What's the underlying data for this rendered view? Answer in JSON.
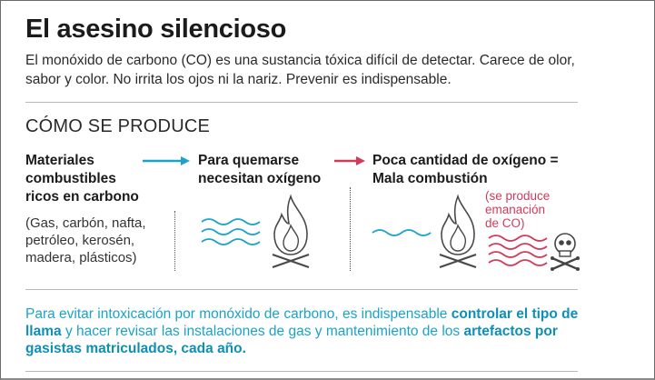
{
  "title": "El asesino silencioso",
  "lead": "El monóxido de carbono (CO) es una sustancia tóxica difícil de detectar. Carece de olor, sabor y color. No irrita los ojos ni la nariz. Prevenir es indispensable.",
  "section_title": "CÓMO SE PRODUCE",
  "step1": {
    "line1": "Materiales",
    "line2": "combustibles",
    "line3": "ricos en carbono",
    "sub1": "(Gas, carbón, nafta,",
    "sub2": "petróleo, kerosén,",
    "sub3": "madera, plásticos)"
  },
  "step2": {
    "line1": "Para quemarse",
    "line2": "necesitan oxígeno"
  },
  "step3": {
    "line1": "Poca cantidad de oxígeno =",
    "line2": "Mala combustión"
  },
  "co_note": {
    "line1": "(se produce",
    "line2": "emanación",
    "line3": "de CO)"
  },
  "footer": {
    "p1": "Para evitar intoxicación por monóxido de carbono, es indispensable ",
    "b1": "controlar el tipo de llama",
    "p2": " y hacer revisar las instalaciones de gas y mantenimiento de los ",
    "b2": "artefactos por gasistas matriculados, cada año."
  },
  "colors": {
    "blue_arrow": "#1aa3c8",
    "red_arrow": "#d23a5a",
    "footer_text": "#1aa3c8"
  },
  "icons": [
    "arrow-right-icon",
    "wave-lines-icon",
    "flame-icon",
    "skull-crossbones-icon"
  ]
}
